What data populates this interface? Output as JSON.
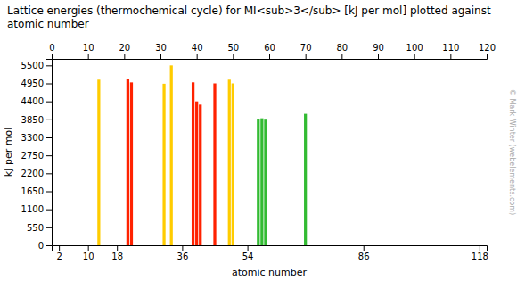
{
  "chart_data": {
    "type": "bar",
    "title": "Lattice energies (thermochemical cycle) for MI<sub>3</sub> [kJ per mol] plotted against",
    "subtitle": "atomic number",
    "xlabel": "atomic number",
    "ylabel": "kJ per mol",
    "x": [
      13,
      21,
      22,
      31,
      33,
      39,
      40,
      41,
      45,
      49,
      50,
      57,
      58,
      59,
      70
    ],
    "values": [
      5065,
      5081,
      4981,
      4940,
      5500,
      4983,
      4400,
      4300,
      4950,
      5065,
      4950,
      3872,
      3882,
      3868,
      4020
    ],
    "colors": [
      "#ffcc00",
      "#ff2200",
      "#ff2200",
      "#ffcc00",
      "#ffcc00",
      "#ff2200",
      "#ff2200",
      "#ff2200",
      "#ff2200",
      "#ffcc00",
      "#ffcc00",
      "#33bb33",
      "#33bb33",
      "#33bb33",
      "#33bb33"
    ],
    "xlim": [
      0,
      120
    ],
    "xticks": [
      2,
      10,
      18,
      36,
      54,
      86,
      118
    ],
    "x2lim": [
      0,
      120
    ],
    "x2ticks": [
      0,
      10,
      20,
      30,
      40,
      50,
      60,
      70,
      80,
      90,
      100,
      110,
      120
    ],
    "ylim": [
      0,
      5700
    ],
    "yticks": [
      0,
      550,
      1100,
      1650,
      2200,
      2750,
      3300,
      3850,
      4400,
      4950,
      5500
    ],
    "grid": false,
    "annotations": [
      "© Mark Winter (webelements.com)"
    ]
  }
}
